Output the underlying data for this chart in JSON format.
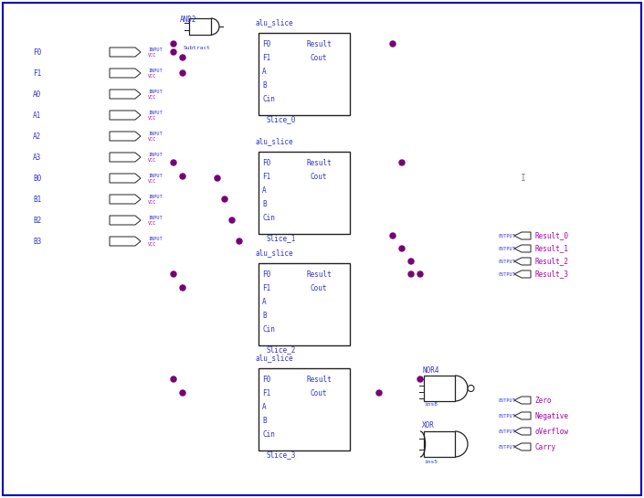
{
  "bg_color": "#ffffff",
  "border_color": "#0000bb",
  "dashed_box_color": "#00bbbb",
  "wire_color": "#cc44cc",
  "wire_color_light": "#dd88dd",
  "component_box_color": "#222222",
  "label_color": "#3333cc",
  "label_color_vcc": "#aa00aa",
  "node_color": "#770077",
  "input_labels": [
    "F0",
    "F1",
    "A0",
    "A1",
    "A2",
    "A3",
    "B0",
    "B1",
    "B2",
    "B3"
  ],
  "slices": [
    "Slice_0",
    "Slice_1",
    "Slice_2",
    "Slice_3"
  ],
  "slice_ports_left": [
    "F0",
    "F1",
    "A",
    "B",
    "Cin"
  ],
  "slice_port_result": "Result",
  "slice_port_cout": "Cout",
  "outputs_result": [
    "Result_0",
    "Result_1",
    "Result_2",
    "Result_3"
  ],
  "outputs_flag": [
    "Zero",
    "Negative",
    "oVerflow",
    "Carry"
  ],
  "and_gate_label": "AND2",
  "and_gate_sublabel": "Subtract",
  "nor_label": "NOR4",
  "nor_sublabel": "ins8",
  "xor_label": "XOR",
  "xor_sublabel": "ins5",
  "alu_slice_label": "alu_slice",
  "I_marker": "I"
}
